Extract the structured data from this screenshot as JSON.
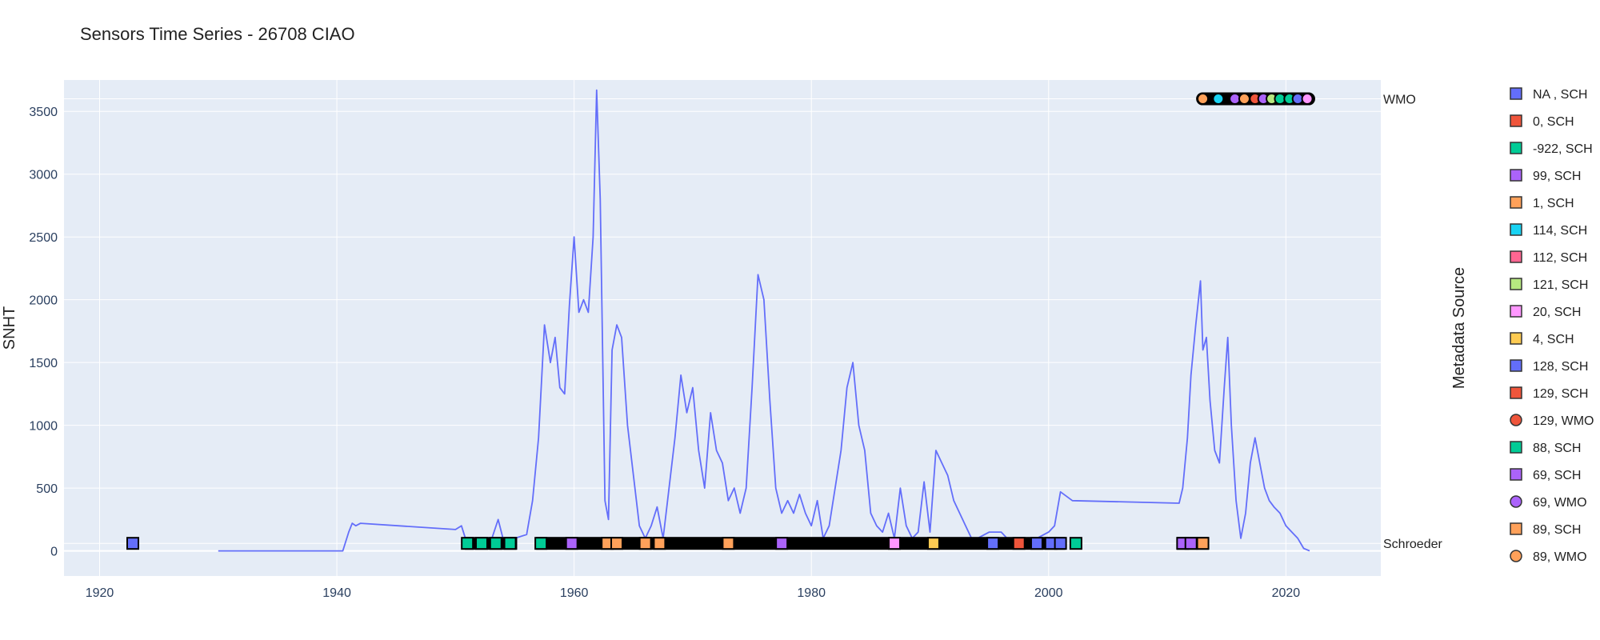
{
  "chart_data": {
    "type": "line",
    "title": "Sensors Time Series - 26708 CIAO",
    "ylabel": "SNHT",
    "legend_title": "Metadata Source",
    "xlim": [
      1917,
      2028
    ],
    "ylim": [
      -200,
      3750
    ],
    "x_ticks": [
      1920,
      1940,
      1960,
      1980,
      2000,
      2020
    ],
    "y_ticks": [
      0,
      500,
      1000,
      1500,
      2000,
      2500,
      3000,
      3500
    ],
    "lanes": [
      {
        "label": "WMO",
        "y": 3600
      },
      {
        "label": "Schroeder",
        "y": 60
      }
    ],
    "series": [
      {
        "color": "#636efa",
        "x": [
          1930.0,
          1940.5,
          1941.0,
          1941.3,
          1941.6,
          1942.0,
          1950.0,
          1950.5,
          1951.0,
          1951.5,
          1952.0,
          1953.0,
          1953.6,
          1954.0,
          1955.0,
          1956.0,
          1956.5,
          1957.0,
          1957.5,
          1958.0,
          1958.4,
          1958.8,
          1959.2,
          1959.6,
          1960.0,
          1960.4,
          1960.8,
          1961.2,
          1961.6,
          1961.9,
          1962.2,
          1962.6,
          1962.9,
          1963.2,
          1963.6,
          1964.0,
          1964.5,
          1965.0,
          1965.5,
          1966.0,
          1966.5,
          1967.0,
          1967.5,
          1968.0,
          1968.5,
          1969.0,
          1969.5,
          1970.0,
          1970.5,
          1971.0,
          1971.5,
          1972.0,
          1972.5,
          1973.0,
          1973.5,
          1974.0,
          1974.5,
          1975.0,
          1975.5,
          1976.0,
          1976.5,
          1977.0,
          1977.5,
          1978.0,
          1978.5,
          1979.0,
          1979.5,
          1980.0,
          1980.5,
          1981.0,
          1981.5,
          1982.0,
          1982.5,
          1983.0,
          1983.5,
          1984.0,
          1984.5,
          1985.0,
          1985.5,
          1986.0,
          1986.5,
          1987.0,
          1987.5,
          1988.0,
          1988.5,
          1989.0,
          1989.5,
          1990.0,
          1990.5,
          1991.0,
          1991.5,
          1992.0,
          1992.5,
          1993.0,
          1993.5,
          1994.0,
          1995.0,
          1996.0,
          1997.0,
          1998.0,
          1999.0,
          2000.0,
          2000.5,
          2001.0,
          2002.0,
          2011.0,
          2011.3,
          2011.7,
          2012.0,
          2012.4,
          2012.8,
          2013.0,
          2013.3,
          2013.6,
          2014.0,
          2014.4,
          2014.8,
          2015.1,
          2015.4,
          2015.8,
          2016.2,
          2016.6,
          2017.0,
          2017.4,
          2017.8,
          2018.2,
          2018.6,
          2019.0,
          2019.5,
          2020.0,
          2020.5,
          2021.0,
          2021.5,
          2022.0
        ],
        "y": [
          0,
          0,
          150,
          220,
          200,
          220,
          170,
          200,
          50,
          100,
          60,
          80,
          250,
          100,
          100,
          130,
          400,
          900,
          1800,
          1500,
          1700,
          1300,
          1250,
          1950,
          2500,
          1900,
          2000,
          1900,
          2500,
          3670,
          2800,
          400,
          250,
          1600,
          1800,
          1700,
          1000,
          600,
          200,
          100,
          200,
          350,
          100,
          500,
          900,
          1400,
          1100,
          1300,
          800,
          500,
          1100,
          800,
          700,
          400,
          500,
          300,
          500,
          1300,
          2200,
          2000,
          1200,
          500,
          300,
          400,
          300,
          450,
          300,
          200,
          400,
          100,
          200,
          500,
          800,
          1300,
          1500,
          1000,
          800,
          300,
          200,
          150,
          300,
          100,
          500,
          200,
          100,
          150,
          550,
          150,
          800,
          700,
          600,
          400,
          300,
          200,
          100,
          100,
          150,
          150,
          50,
          100,
          100,
          150,
          200,
          470,
          400,
          380,
          500,
          900,
          1400,
          1800,
          2150,
          1600,
          1700,
          1200,
          800,
          700,
          1300,
          1700,
          1000,
          400,
          100,
          300,
          700,
          900,
          700,
          500,
          400,
          350,
          300,
          200,
          150,
          100,
          20,
          0
        ]
      }
    ],
    "markers": {
      "schroeder": [
        {
          "x": 1922.8,
          "color": "#636efa"
        },
        {
          "x": 1951.0,
          "color": "#00cc96"
        },
        {
          "x": 1952.2,
          "color": "#00cc96"
        },
        {
          "x": 1953.4,
          "color": "#00cc96"
        },
        {
          "x": 1954.6,
          "color": "#00cc96"
        },
        {
          "x": 1957.2,
          "color": "#00cc96"
        },
        {
          "x": 1959.8,
          "color": "#ab63fa"
        },
        {
          "x": 1962.8,
          "color": "#ffa15a"
        },
        {
          "x": 1963.6,
          "color": "#ffa15a"
        },
        {
          "x": 1966.0,
          "color": "#ffa15a"
        },
        {
          "x": 1967.2,
          "color": "#ffa15a"
        },
        {
          "x": 1973.0,
          "color": "#ffa15a"
        },
        {
          "x": 1977.5,
          "color": "#ab63fa"
        },
        {
          "x": 1987.0,
          "color": "#ff97ff"
        },
        {
          "x": 1990.3,
          "color": "#fecb52"
        },
        {
          "x": 1995.3,
          "color": "#636efa"
        },
        {
          "x": 1997.5,
          "color": "#ef553b"
        },
        {
          "x": 1999.0,
          "color": "#636efa"
        },
        {
          "x": 2000.2,
          "color": "#636efa"
        },
        {
          "x": 2001.0,
          "color": "#636efa"
        },
        {
          "x": 2002.3,
          "color": "#00cc96"
        },
        {
          "x": 2011.3,
          "color": "#ab63fa"
        },
        {
          "x": 2012.0,
          "color": "#ab63fa"
        },
        {
          "x": 2013.0,
          "color": "#ffa15a"
        }
      ],
      "wmo": [
        {
          "x": 2013.0,
          "color": "#ffa15a"
        },
        {
          "x": 2014.3,
          "color": "#19d3f3"
        },
        {
          "x": 2015.7,
          "color": "#ab63fa"
        },
        {
          "x": 2016.5,
          "color": "#ffa15a"
        },
        {
          "x": 2017.4,
          "color": "#ef553b"
        },
        {
          "x": 2018.1,
          "color": "#ab63fa"
        },
        {
          "x": 2018.8,
          "color": "#b6e880"
        },
        {
          "x": 2019.5,
          "color": "#00cc96"
        },
        {
          "x": 2020.3,
          "color": "#00cc96"
        },
        {
          "x": 2021.0,
          "color": "#636efa"
        },
        {
          "x": 2021.8,
          "color": "#ff97ff"
        }
      ]
    },
    "legend": [
      {
        "label": "NA , SCH",
        "color": "#636efa",
        "symbol": "square"
      },
      {
        "label": "0, SCH",
        "color": "#ef553b",
        "symbol": "square"
      },
      {
        "label": "-922, SCH",
        "color": "#00cc96",
        "symbol": "square"
      },
      {
        "label": "99, SCH",
        "color": "#ab63fa",
        "symbol": "square"
      },
      {
        "label": "1, SCH",
        "color": "#ffa15a",
        "symbol": "square"
      },
      {
        "label": "114, SCH",
        "color": "#19d3f3",
        "symbol": "square"
      },
      {
        "label": "112, SCH",
        "color": "#ff6692",
        "symbol": "square"
      },
      {
        "label": "121, SCH",
        "color": "#b6e880",
        "symbol": "square"
      },
      {
        "label": "20, SCH",
        "color": "#ff97ff",
        "symbol": "square"
      },
      {
        "label": "4, SCH",
        "color": "#fecb52",
        "symbol": "square"
      },
      {
        "label": "128, SCH",
        "color": "#636efa",
        "symbol": "square"
      },
      {
        "label": "129, SCH",
        "color": "#ef553b",
        "symbol": "square"
      },
      {
        "label": "129, WMO",
        "color": "#ef553b",
        "symbol": "circle"
      },
      {
        "label": "88, SCH",
        "color": "#00cc96",
        "symbol": "square"
      },
      {
        "label": "69, SCH",
        "color": "#ab63fa",
        "symbol": "square"
      },
      {
        "label": "69, WMO",
        "color": "#ab63fa",
        "symbol": "circle"
      },
      {
        "label": "89, SCH",
        "color": "#ffa15a",
        "symbol": "square"
      },
      {
        "label": "89, WMO",
        "color": "#ffa15a",
        "symbol": "circle"
      }
    ],
    "grid": true,
    "legend_position": "right"
  }
}
